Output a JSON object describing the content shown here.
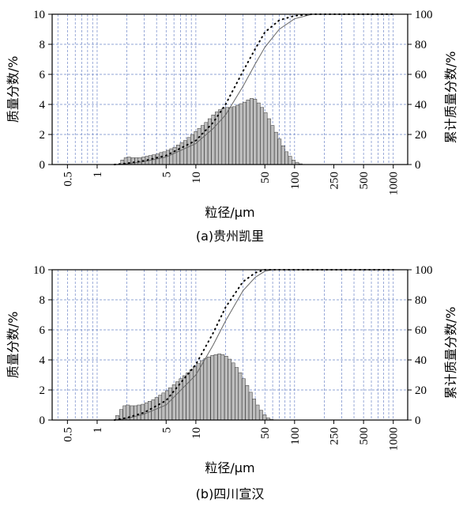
{
  "chart_data": [
    {
      "type": "bar",
      "caption": "(a)贵州凯里",
      "xlabel": "粒径/μm",
      "ylabel_left": "质量分数/%",
      "ylabel_right": "累计质量分数/%",
      "x_scale": "log",
      "xlim": [
        0.35,
        1400
      ],
      "ylim_left": [
        0,
        10
      ],
      "ylim_right": [
        0,
        100
      ],
      "x_ticks": [
        "0.5",
        "1",
        "5",
        "10",
        "50",
        "100",
        "250",
        "500",
        "1000"
      ],
      "y_ticks_left": [
        "0",
        "2",
        "4",
        "6",
        "8",
        "10"
      ],
      "y_ticks_right": [
        "0",
        "20",
        "40",
        "60",
        "80",
        "100"
      ],
      "grid": true,
      "bins": [
        {
          "x": 1.8,
          "y": 0.3
        },
        {
          "x": 1.95,
          "y": 0.45
        },
        {
          "x": 2.1,
          "y": 0.5
        },
        {
          "x": 2.3,
          "y": 0.45
        },
        {
          "x": 2.5,
          "y": 0.45
        },
        {
          "x": 2.7,
          "y": 0.45
        },
        {
          "x": 2.95,
          "y": 0.5
        },
        {
          "x": 3.2,
          "y": 0.55
        },
        {
          "x": 3.45,
          "y": 0.6
        },
        {
          "x": 3.75,
          "y": 0.65
        },
        {
          "x": 4.1,
          "y": 0.7
        },
        {
          "x": 4.45,
          "y": 0.8
        },
        {
          "x": 4.8,
          "y": 0.85
        },
        {
          "x": 5.2,
          "y": 0.95
        },
        {
          "x": 5.65,
          "y": 1.05
        },
        {
          "x": 6.1,
          "y": 1.15
        },
        {
          "x": 6.6,
          "y": 1.3
        },
        {
          "x": 7.2,
          "y": 1.45
        },
        {
          "x": 7.8,
          "y": 1.6
        },
        {
          "x": 8.5,
          "y": 1.8
        },
        {
          "x": 9.2,
          "y": 2.0
        },
        {
          "x": 10.0,
          "y": 2.2
        },
        {
          "x": 10.8,
          "y": 2.4
        },
        {
          "x": 11.7,
          "y": 2.6
        },
        {
          "x": 12.7,
          "y": 2.8
        },
        {
          "x": 13.8,
          "y": 3.05
        },
        {
          "x": 15.0,
          "y": 3.3
        },
        {
          "x": 16.3,
          "y": 3.5
        },
        {
          "x": 17.6,
          "y": 3.65
        },
        {
          "x": 19.1,
          "y": 3.75
        },
        {
          "x": 20.7,
          "y": 3.8
        },
        {
          "x": 22.5,
          "y": 3.8
        },
        {
          "x": 24.4,
          "y": 3.85
        },
        {
          "x": 26.5,
          "y": 3.95
        },
        {
          "x": 28.7,
          "y": 4.05
        },
        {
          "x": 31.1,
          "y": 4.15
        },
        {
          "x": 33.8,
          "y": 4.3
        },
        {
          "x": 36.7,
          "y": 4.4
        },
        {
          "x": 39.8,
          "y": 4.35
        },
        {
          "x": 43.2,
          "y": 4.1
        },
        {
          "x": 46.8,
          "y": 3.8
        },
        {
          "x": 50.8,
          "y": 3.45
        },
        {
          "x": 55.1,
          "y": 3.05
        },
        {
          "x": 59.8,
          "y": 2.6
        },
        {
          "x": 64.9,
          "y": 2.15
        },
        {
          "x": 70.4,
          "y": 1.7
        },
        {
          "x": 76.4,
          "y": 1.25
        },
        {
          "x": 82.9,
          "y": 0.85
        },
        {
          "x": 90.0,
          "y": 0.55
        },
        {
          "x": 97.6,
          "y": 0.3
        },
        {
          "x": 106,
          "y": 0.15
        },
        {
          "x": 115,
          "y": 0.05
        }
      ],
      "series": [
        {
          "style": "solid",
          "points": [
            [
              1.5,
              0
            ],
            [
              2,
              0.5
            ],
            [
              3,
              2
            ],
            [
              5,
              5
            ],
            [
              10,
              14
            ],
            [
              15,
              24
            ],
            [
              20,
              33
            ],
            [
              30,
              52
            ],
            [
              40,
              67
            ],
            [
              50,
              78
            ],
            [
              70,
              90
            ],
            [
              100,
              97
            ],
            [
              150,
              100
            ],
            [
              1000,
              100
            ]
          ]
        },
        {
          "style": "dotted",
          "points": [
            [
              1.5,
              0
            ],
            [
              2,
              0.8
            ],
            [
              3,
              2.5
            ],
            [
              5,
              6
            ],
            [
              10,
              16
            ],
            [
              15,
              28
            ],
            [
              20,
              40
            ],
            [
              30,
              62
            ],
            [
              40,
              77
            ],
            [
              50,
              88
            ],
            [
              70,
              96
            ],
            [
              100,
              99
            ],
            [
              150,
              100
            ],
            [
              1000,
              100
            ]
          ]
        }
      ]
    },
    {
      "type": "bar",
      "caption": "(b)四川宣汉",
      "xlabel": "粒径/μm",
      "ylabel_left": "质量分数/%",
      "ylabel_right": "累计质量分数/%",
      "x_scale": "log",
      "xlim": [
        0.35,
        1400
      ],
      "ylim_left": [
        0,
        10
      ],
      "ylim_right": [
        0,
        100
      ],
      "x_ticks": [
        "0.5",
        "1",
        "5",
        "10",
        "50",
        "100",
        "250",
        "500",
        "1000"
      ],
      "y_ticks_left": [
        "0",
        "2",
        "4",
        "6",
        "8",
        "10"
      ],
      "y_ticks_right": [
        "0",
        "20",
        "40",
        "60",
        "80",
        "100"
      ],
      "grid": true,
      "bins": [
        {
          "x": 1.6,
          "y": 0.3
        },
        {
          "x": 1.75,
          "y": 0.7
        },
        {
          "x": 1.9,
          "y": 0.95
        },
        {
          "x": 2.05,
          "y": 1.0
        },
        {
          "x": 2.25,
          "y": 0.95
        },
        {
          "x": 2.45,
          "y": 0.95
        },
        {
          "x": 2.65,
          "y": 1.0
        },
        {
          "x": 2.9,
          "y": 1.05
        },
        {
          "x": 3.15,
          "y": 1.15
        },
        {
          "x": 3.4,
          "y": 1.25
        },
        {
          "x": 3.7,
          "y": 1.35
        },
        {
          "x": 4.0,
          "y": 1.5
        },
        {
          "x": 4.35,
          "y": 1.65
        },
        {
          "x": 4.7,
          "y": 1.8
        },
        {
          "x": 5.1,
          "y": 1.95
        },
        {
          "x": 5.5,
          "y": 2.15
        },
        {
          "x": 6.0,
          "y": 2.35
        },
        {
          "x": 6.5,
          "y": 2.55
        },
        {
          "x": 7.05,
          "y": 2.75
        },
        {
          "x": 7.65,
          "y": 2.95
        },
        {
          "x": 8.3,
          "y": 3.15
        },
        {
          "x": 9.0,
          "y": 3.35
        },
        {
          "x": 9.75,
          "y": 3.55
        },
        {
          "x": 10.6,
          "y": 3.75
        },
        {
          "x": 11.5,
          "y": 3.95
        },
        {
          "x": 12.5,
          "y": 4.1
        },
        {
          "x": 13.5,
          "y": 4.2
        },
        {
          "x": 14.7,
          "y": 4.3
        },
        {
          "x": 15.9,
          "y": 4.35
        },
        {
          "x": 17.3,
          "y": 4.4
        },
        {
          "x": 18.7,
          "y": 4.35
        },
        {
          "x": 20.3,
          "y": 4.25
        },
        {
          "x": 22.0,
          "y": 4.05
        },
        {
          "x": 23.9,
          "y": 3.8
        },
        {
          "x": 25.9,
          "y": 3.5
        },
        {
          "x": 28.1,
          "y": 3.15
        },
        {
          "x": 30.5,
          "y": 2.75
        },
        {
          "x": 33.1,
          "y": 2.3
        },
        {
          "x": 35.9,
          "y": 1.85
        },
        {
          "x": 38.9,
          "y": 1.4
        },
        {
          "x": 42.2,
          "y": 1.0
        },
        {
          "x": 45.8,
          "y": 0.65
        },
        {
          "x": 49.7,
          "y": 0.35
        },
        {
          "x": 53.9,
          "y": 0.15
        },
        {
          "x": 58.5,
          "y": 0.05
        }
      ],
      "series": [
        {
          "style": "solid",
          "points": [
            [
              1.5,
              0
            ],
            [
              2,
              1
            ],
            [
              3,
              4
            ],
            [
              5,
              10
            ],
            [
              10,
              30
            ],
            [
              15,
              50
            ],
            [
              20,
              66
            ],
            [
              30,
              86
            ],
            [
              40,
              95
            ],
            [
              50,
              99
            ],
            [
              60,
              100
            ],
            [
              1000,
              100
            ]
          ]
        },
        {
          "style": "dotted",
          "points": [
            [
              1.5,
              0
            ],
            [
              2,
              1.5
            ],
            [
              3,
              5
            ],
            [
              5,
              13
            ],
            [
              10,
              37
            ],
            [
              15,
              58
            ],
            [
              20,
              75
            ],
            [
              30,
              92
            ],
            [
              40,
              98
            ],
            [
              50,
              100
            ],
            [
              60,
              100
            ],
            [
              1000,
              100
            ]
          ]
        }
      ]
    }
  ]
}
